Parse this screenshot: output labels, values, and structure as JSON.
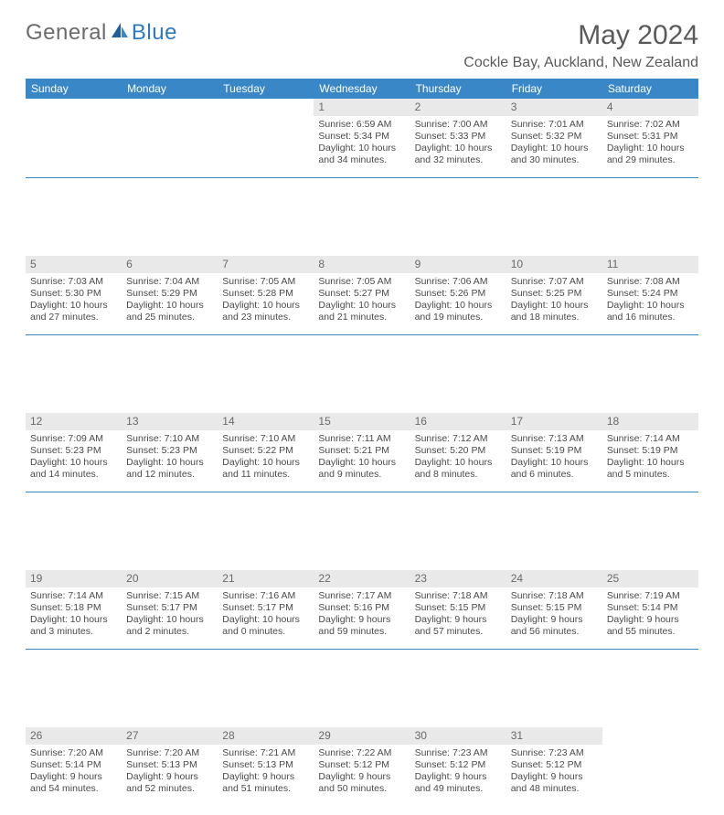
{
  "logo": {
    "word1": "General",
    "word2": "Blue"
  },
  "title": "May 2024",
  "location": "Cockle Bay, Auckland, New Zealand",
  "colors": {
    "header_bg": "#3a87c7",
    "header_text": "#ffffff",
    "daynum_bg": "#e9e9e9",
    "text": "#4a4a4a",
    "title_text": "#5a5a5a",
    "logo_gray": "#6b6b6b",
    "logo_blue": "#2f7abf"
  },
  "typography": {
    "title_fontsize": 30,
    "location_fontsize": 16,
    "weekday_fontsize": 12,
    "cell_fontsize": 10.5
  },
  "weekdays": [
    "Sunday",
    "Monday",
    "Tuesday",
    "Wednesday",
    "Thursday",
    "Friday",
    "Saturday"
  ],
  "weeks": [
    [
      null,
      null,
      null,
      {
        "n": "1",
        "sr": "Sunrise: 6:59 AM",
        "ss": "Sunset: 5:34 PM",
        "d1": "Daylight: 10 hours",
        "d2": "and 34 minutes."
      },
      {
        "n": "2",
        "sr": "Sunrise: 7:00 AM",
        "ss": "Sunset: 5:33 PM",
        "d1": "Daylight: 10 hours",
        "d2": "and 32 minutes."
      },
      {
        "n": "3",
        "sr": "Sunrise: 7:01 AM",
        "ss": "Sunset: 5:32 PM",
        "d1": "Daylight: 10 hours",
        "d2": "and 30 minutes."
      },
      {
        "n": "4",
        "sr": "Sunrise: 7:02 AM",
        "ss": "Sunset: 5:31 PM",
        "d1": "Daylight: 10 hours",
        "d2": "and 29 minutes."
      }
    ],
    [
      {
        "n": "5",
        "sr": "Sunrise: 7:03 AM",
        "ss": "Sunset: 5:30 PM",
        "d1": "Daylight: 10 hours",
        "d2": "and 27 minutes."
      },
      {
        "n": "6",
        "sr": "Sunrise: 7:04 AM",
        "ss": "Sunset: 5:29 PM",
        "d1": "Daylight: 10 hours",
        "d2": "and 25 minutes."
      },
      {
        "n": "7",
        "sr": "Sunrise: 7:05 AM",
        "ss": "Sunset: 5:28 PM",
        "d1": "Daylight: 10 hours",
        "d2": "and 23 minutes."
      },
      {
        "n": "8",
        "sr": "Sunrise: 7:05 AM",
        "ss": "Sunset: 5:27 PM",
        "d1": "Daylight: 10 hours",
        "d2": "and 21 minutes."
      },
      {
        "n": "9",
        "sr": "Sunrise: 7:06 AM",
        "ss": "Sunset: 5:26 PM",
        "d1": "Daylight: 10 hours",
        "d2": "and 19 minutes."
      },
      {
        "n": "10",
        "sr": "Sunrise: 7:07 AM",
        "ss": "Sunset: 5:25 PM",
        "d1": "Daylight: 10 hours",
        "d2": "and 18 minutes."
      },
      {
        "n": "11",
        "sr": "Sunrise: 7:08 AM",
        "ss": "Sunset: 5:24 PM",
        "d1": "Daylight: 10 hours",
        "d2": "and 16 minutes."
      }
    ],
    [
      {
        "n": "12",
        "sr": "Sunrise: 7:09 AM",
        "ss": "Sunset: 5:23 PM",
        "d1": "Daylight: 10 hours",
        "d2": "and 14 minutes."
      },
      {
        "n": "13",
        "sr": "Sunrise: 7:10 AM",
        "ss": "Sunset: 5:23 PM",
        "d1": "Daylight: 10 hours",
        "d2": "and 12 minutes."
      },
      {
        "n": "14",
        "sr": "Sunrise: 7:10 AM",
        "ss": "Sunset: 5:22 PM",
        "d1": "Daylight: 10 hours",
        "d2": "and 11 minutes."
      },
      {
        "n": "15",
        "sr": "Sunrise: 7:11 AM",
        "ss": "Sunset: 5:21 PM",
        "d1": "Daylight: 10 hours",
        "d2": "and 9 minutes."
      },
      {
        "n": "16",
        "sr": "Sunrise: 7:12 AM",
        "ss": "Sunset: 5:20 PM",
        "d1": "Daylight: 10 hours",
        "d2": "and 8 minutes."
      },
      {
        "n": "17",
        "sr": "Sunrise: 7:13 AM",
        "ss": "Sunset: 5:19 PM",
        "d1": "Daylight: 10 hours",
        "d2": "and 6 minutes."
      },
      {
        "n": "18",
        "sr": "Sunrise: 7:14 AM",
        "ss": "Sunset: 5:19 PM",
        "d1": "Daylight: 10 hours",
        "d2": "and 5 minutes."
      }
    ],
    [
      {
        "n": "19",
        "sr": "Sunrise: 7:14 AM",
        "ss": "Sunset: 5:18 PM",
        "d1": "Daylight: 10 hours",
        "d2": "and 3 minutes."
      },
      {
        "n": "20",
        "sr": "Sunrise: 7:15 AM",
        "ss": "Sunset: 5:17 PM",
        "d1": "Daylight: 10 hours",
        "d2": "and 2 minutes."
      },
      {
        "n": "21",
        "sr": "Sunrise: 7:16 AM",
        "ss": "Sunset: 5:17 PM",
        "d1": "Daylight: 10 hours",
        "d2": "and 0 minutes."
      },
      {
        "n": "22",
        "sr": "Sunrise: 7:17 AM",
        "ss": "Sunset: 5:16 PM",
        "d1": "Daylight: 9 hours",
        "d2": "and 59 minutes."
      },
      {
        "n": "23",
        "sr": "Sunrise: 7:18 AM",
        "ss": "Sunset: 5:15 PM",
        "d1": "Daylight: 9 hours",
        "d2": "and 57 minutes."
      },
      {
        "n": "24",
        "sr": "Sunrise: 7:18 AM",
        "ss": "Sunset: 5:15 PM",
        "d1": "Daylight: 9 hours",
        "d2": "and 56 minutes."
      },
      {
        "n": "25",
        "sr": "Sunrise: 7:19 AM",
        "ss": "Sunset: 5:14 PM",
        "d1": "Daylight: 9 hours",
        "d2": "and 55 minutes."
      }
    ],
    [
      {
        "n": "26",
        "sr": "Sunrise: 7:20 AM",
        "ss": "Sunset: 5:14 PM",
        "d1": "Daylight: 9 hours",
        "d2": "and 54 minutes."
      },
      {
        "n": "27",
        "sr": "Sunrise: 7:20 AM",
        "ss": "Sunset: 5:13 PM",
        "d1": "Daylight: 9 hours",
        "d2": "and 52 minutes."
      },
      {
        "n": "28",
        "sr": "Sunrise: 7:21 AM",
        "ss": "Sunset: 5:13 PM",
        "d1": "Daylight: 9 hours",
        "d2": "and 51 minutes."
      },
      {
        "n": "29",
        "sr": "Sunrise: 7:22 AM",
        "ss": "Sunset: 5:12 PM",
        "d1": "Daylight: 9 hours",
        "d2": "and 50 minutes."
      },
      {
        "n": "30",
        "sr": "Sunrise: 7:23 AM",
        "ss": "Sunset: 5:12 PM",
        "d1": "Daylight: 9 hours",
        "d2": "and 49 minutes."
      },
      {
        "n": "31",
        "sr": "Sunrise: 7:23 AM",
        "ss": "Sunset: 5:12 PM",
        "d1": "Daylight: 9 hours",
        "d2": "and 48 minutes."
      },
      null
    ]
  ]
}
